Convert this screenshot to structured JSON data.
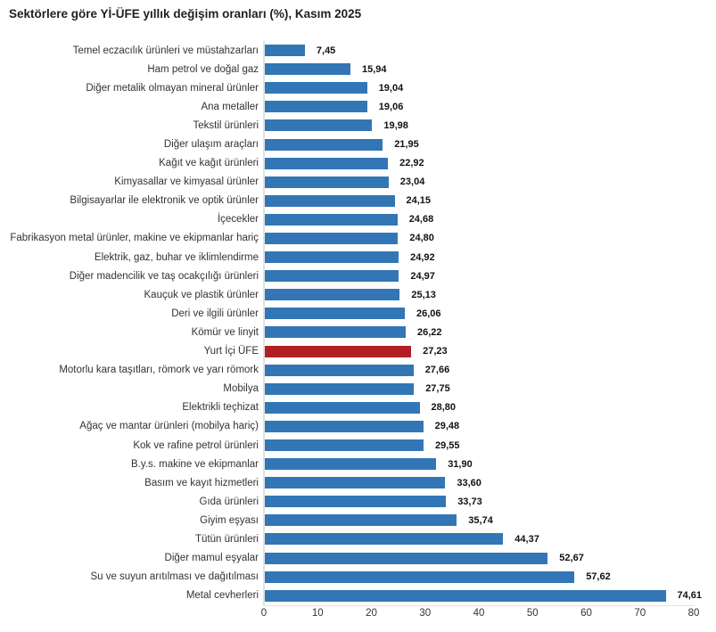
{
  "title": "Sektörlere göre Yİ-ÜFE yıllık değişim oranları (%), Kasım 2025",
  "chart_data": {
    "type": "bar",
    "orientation": "horizontal",
    "title": "Sektörlere göre Yİ-ÜFE yıllık değişim oranları (%), Kasım 2025",
    "xlabel": "",
    "ylabel": "",
    "xlim": [
      0,
      80
    ],
    "x_ticks": [
      0,
      10,
      20,
      30,
      40,
      50,
      60,
      70,
      80
    ],
    "grid": false,
    "legend": "none",
    "bar_color": "#3276b5",
    "highlight_color": "#b01f24",
    "highlight_category": "Yurt İçi ÜFE",
    "decimal_separator": ",",
    "categories": [
      "Temel eczacılık ürünleri ve müstahzarları",
      "Ham petrol ve doğal gaz",
      "Diğer metalik olmayan mineral ürünler",
      "Ana metaller",
      "Tekstil ürünleri",
      "Diğer ulaşım araçları",
      "Kağıt ve kağıt ürünleri",
      "Kimyasallar ve kimyasal ürünler",
      "Bilgisayarlar ile elektronik ve optik ürünler",
      "İçecekler",
      "Fabrikasyon metal ürünler, makine ve ekipmanlar hariç",
      "Elektrik, gaz, buhar ve iklimlendirme",
      "Diğer madencilik ve taş ocakçılığı ürünleri",
      "Kauçuk ve plastik ürünler",
      "Deri ve ilgili ürünler",
      "Kömür ve linyit",
      "Yurt İçi ÜFE",
      "Motorlu kara taşıtları, römork ve yarı römork",
      "Mobilya",
      "Elektrikli teçhizat",
      "Ağaç ve mantar ürünleri (mobilya hariç)",
      "Kok ve rafine petrol ürünleri",
      "B.y.s. makine ve ekipmanlar",
      "Basım ve kayıt hizmetleri",
      "Gıda ürünleri",
      "Giyim eşyası",
      "Tütün ürünleri",
      "Diğer mamul eşyalar",
      "Su ve suyun arıtılması ve dağıtılması",
      "Metal cevherleri"
    ],
    "values": [
      7.45,
      15.94,
      19.04,
      19.06,
      19.98,
      21.95,
      22.92,
      23.04,
      24.15,
      24.68,
      24.8,
      24.92,
      24.97,
      25.13,
      26.06,
      26.22,
      27.23,
      27.66,
      27.75,
      28.8,
      29.48,
      29.55,
      31.9,
      33.6,
      33.73,
      35.74,
      44.37,
      52.67,
      57.62,
      74.61
    ],
    "value_labels": [
      "7,45",
      "15,94",
      "19,04",
      "19,06",
      "19,98",
      "21,95",
      "22,92",
      "23,04",
      "24,15",
      "24,68",
      "24,80",
      "24,92",
      "24,97",
      "25,13",
      "26,06",
      "26,22",
      "27,23",
      "27,66",
      "27,75",
      "28,80",
      "29,48",
      "29,55",
      "31,90",
      "33,60",
      "33,73",
      "35,74",
      "44,37",
      "52,67",
      "57,62",
      "74,61"
    ]
  }
}
